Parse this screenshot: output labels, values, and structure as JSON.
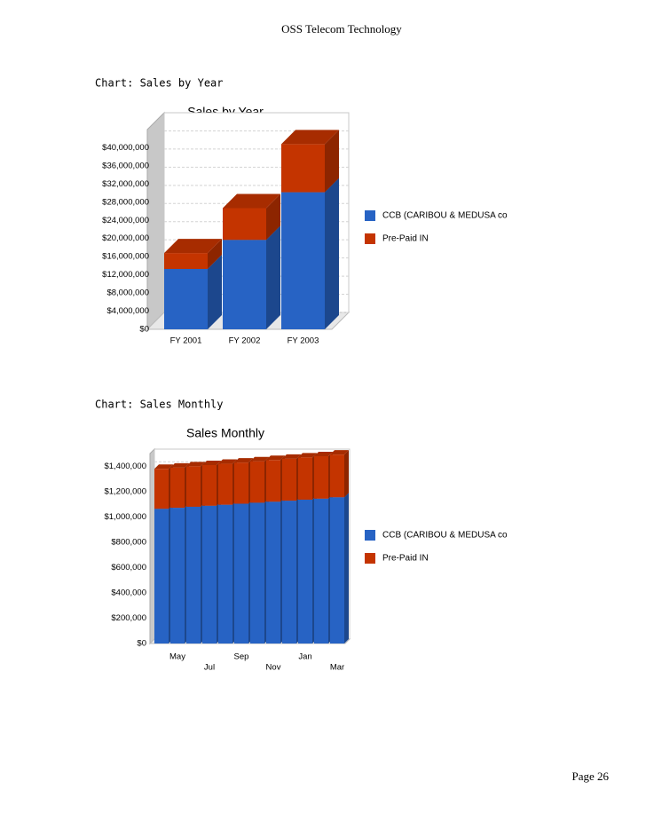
{
  "header": "OSS Telecom Technology",
  "captions": [
    "Chart: Sales by Year",
    "Chart: Sales Monthly"
  ],
  "footer": "Page 26",
  "chart_data": [
    {
      "type": "bar",
      "stacked": true,
      "title": "Sales by Year",
      "categories": [
        "FY 2001",
        "FY 2002",
        "FY 2003"
      ],
      "series": [
        {
          "name": "CCB (CARIBOU & MEDUSA co",
          "color": "#2763c4",
          "values": [
            13300000,
            19700000,
            30200000
          ]
        },
        {
          "name": "Pre-Paid IN",
          "color": "#c43400",
          "values": [
            3500000,
            7000000,
            10600000
          ]
        }
      ],
      "ylim": [
        0,
        44000000
      ],
      "yticks": [
        {
          "value": 0,
          "label": "$0"
        },
        {
          "value": 4000000,
          "label": "$4,000,000"
        },
        {
          "value": 8000000,
          "label": "$8,000,000"
        },
        {
          "value": 12000000,
          "label": "$12,000,000"
        },
        {
          "value": 16000000,
          "label": "$16,000,000"
        },
        {
          "value": 20000000,
          "label": "$20,000,000"
        },
        {
          "value": 24000000,
          "label": "$24,000,000"
        },
        {
          "value": 28000000,
          "label": "$28,000,000"
        },
        {
          "value": 32000000,
          "label": "$32,000,000"
        },
        {
          "value": 36000000,
          "label": "$36,000,000"
        },
        {
          "value": 40000000,
          "label": "$40,000,000"
        }
      ],
      "grid": true,
      "legend": "right"
    },
    {
      "type": "bar",
      "stacked": true,
      "title": "Sales Monthly",
      "categories": [
        null,
        "May",
        null,
        "Jul",
        null,
        "Sep",
        null,
        "Nov",
        null,
        "Jan",
        null,
        "Mar"
      ],
      "series": [
        {
          "name": "CCB (CARIBOU & MEDUSA co",
          "color": "#2763c4",
          "values": [
            1064000,
            1072000,
            1080000,
            1088000,
            1096000,
            1104000,
            1112000,
            1120000,
            1128000,
            1136000,
            1144000,
            1155000
          ]
        },
        {
          "name": "Pre-Paid IN",
          "color": "#c43400",
          "values": [
            315000,
            317000,
            319000,
            321000,
            323000,
            325000,
            327000,
            329000,
            331000,
            333000,
            335000,
            337000
          ]
        }
      ],
      "ylim": [
        0,
        1500000
      ],
      "yticks": [
        {
          "value": 0,
          "label": "$0"
        },
        {
          "value": 200000,
          "label": "$200,000"
        },
        {
          "value": 400000,
          "label": "$400,000"
        },
        {
          "value": 600000,
          "label": "$600,000"
        },
        {
          "value": 800000,
          "label": "$800,000"
        },
        {
          "value": 1000000,
          "label": "$1,000,000"
        },
        {
          "value": 1200000,
          "label": "$1,200,000"
        },
        {
          "value": 1400000,
          "label": "$1,400,000"
        }
      ],
      "grid": true,
      "legend": "right"
    }
  ]
}
